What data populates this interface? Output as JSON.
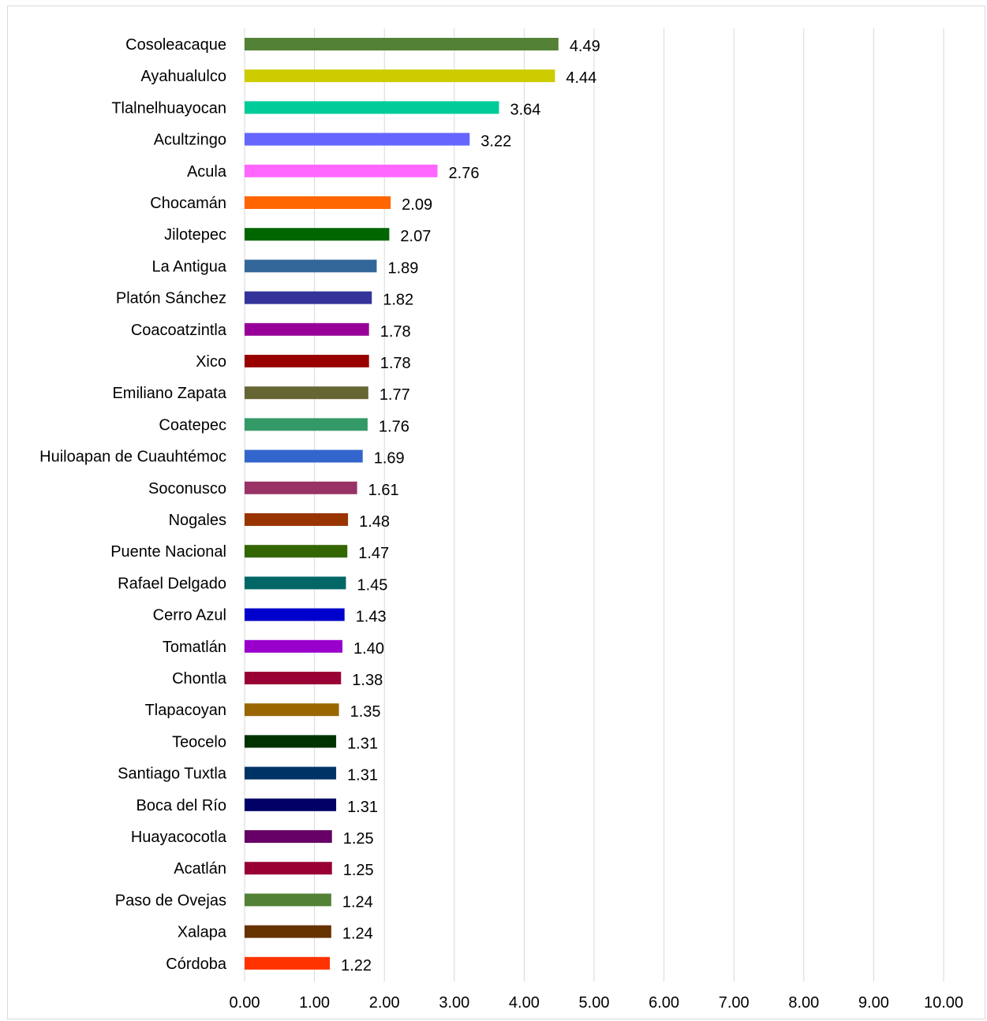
{
  "chart_data": {
    "type": "bar",
    "orientation": "horizontal",
    "title": "",
    "xlabel": "",
    "ylabel": "",
    "xlim": [
      0,
      10
    ],
    "x_ticks": [
      "0.00",
      "1.00",
      "2.00",
      "3.00",
      "4.00",
      "5.00",
      "6.00",
      "7.00",
      "8.00",
      "9.00",
      "10.00"
    ],
    "grid": "vertical",
    "legend": "none",
    "categories": [
      "Cosoleacaque",
      "Ayahualulco",
      "Tlalnelhuayocan",
      "Acultzingo",
      "Acula",
      "Chocamán",
      "Jilotepec",
      "La Antigua",
      "Platón Sánchez",
      "Coacoatzintla",
      "Xico",
      "Emiliano Zapata",
      "Coatepec",
      "Huiloapan de Cuauhtémoc",
      "Soconusco",
      "Nogales",
      "Puente Nacional",
      "Rafael Delgado",
      "Cerro Azul",
      "Tomatlán",
      "Chontla",
      "Tlapacoyan",
      "Teocelo",
      "Santiago Tuxtla",
      "Boca del Río",
      "Huayacocotla",
      "Acatlán",
      "Paso de Ovejas",
      "Xalapa",
      "Córdoba"
    ],
    "values": [
      4.49,
      4.44,
      3.64,
      3.22,
      2.76,
      2.09,
      2.07,
      1.89,
      1.82,
      1.78,
      1.78,
      1.77,
      1.76,
      1.69,
      1.61,
      1.48,
      1.47,
      1.45,
      1.43,
      1.4,
      1.38,
      1.35,
      1.31,
      1.31,
      1.31,
      1.25,
      1.25,
      1.24,
      1.24,
      1.22
    ],
    "value_labels": [
      "4.49",
      "4.44",
      "3.64",
      "3.22",
      "2.76",
      "2.09",
      "2.07",
      "1.89",
      "1.82",
      "1.78",
      "1.78",
      "1.77",
      "1.76",
      "1.69",
      "1.61",
      "1.48",
      "1.47",
      "1.45",
      "1.43",
      "1.40",
      "1.38",
      "1.35",
      "1.31",
      "1.31",
      "1.31",
      "1.25",
      "1.25",
      "1.24",
      "1.24",
      "1.22"
    ],
    "colors": [
      "#538135",
      "#cccc00",
      "#00cc99",
      "#6666ff",
      "#ff66ff",
      "#ff6600",
      "#006600",
      "#336699",
      "#333399",
      "#990099",
      "#990000",
      "#666633",
      "#339966",
      "#3366cc",
      "#993366",
      "#993300",
      "#336600",
      "#006666",
      "#0000cc",
      "#9900cc",
      "#990033",
      "#996600",
      "#003300",
      "#003366",
      "#000066",
      "#660066",
      "#990033",
      "#538135",
      "#663300",
      "#ff3300"
    ],
    "grid_color": "#d9d9d9"
  }
}
